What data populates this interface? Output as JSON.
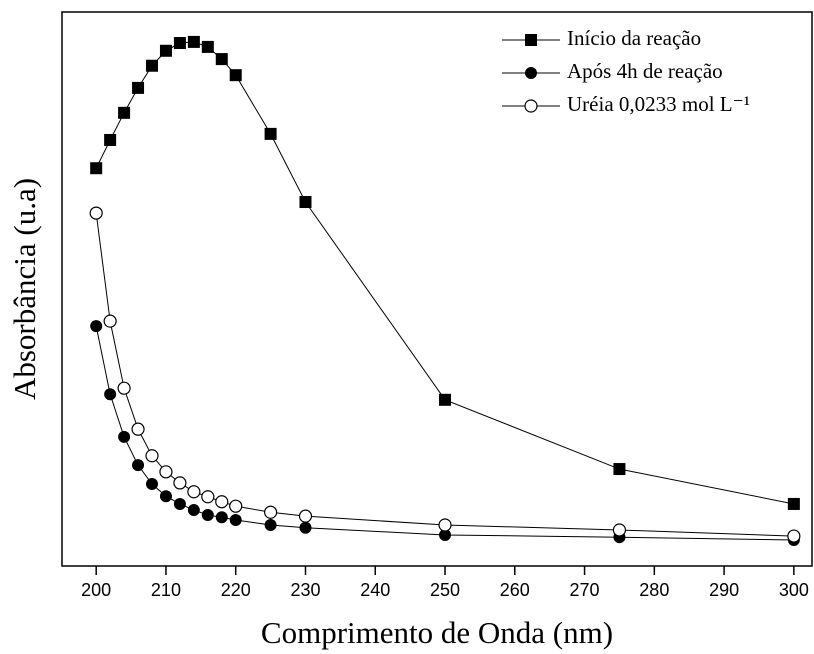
{
  "chart_data": {
    "type": "line",
    "xlabel": "Comprimento de Onda (nm)",
    "ylabel": "Absorbância (u.a)",
    "x": [
      200,
      202,
      204,
      206,
      208,
      210,
      212,
      214,
      216,
      218,
      220,
      225,
      230,
      250,
      275,
      300
    ],
    "series": [
      {
        "name": "Início da reação",
        "color": "#000000",
        "marker": "square",
        "values": [
          71.8,
          76.9,
          81.8,
          86.3,
          90.3,
          93.0,
          94.4,
          94.6,
          93.7,
          91.5,
          88.6,
          78.0,
          65.7,
          30.0,
          17.5,
          11.2
        ]
      },
      {
        "name": "Após 4h de reação",
        "color": "#000000",
        "marker": "circle",
        "values": [
          43.3,
          31.0,
          23.3,
          18.2,
          14.8,
          12.6,
          11.2,
          10.1,
          9.2,
          8.8,
          8.3,
          7.4,
          6.9,
          5.6,
          5.2,
          4.7
        ]
      },
      {
        "name": "Uréia 0,0233 mol L⁻¹",
        "color": "#000000",
        "marker": "open-circle",
        "values": [
          63.7,
          44.2,
          32.1,
          24.7,
          19.9,
          17.0,
          15.0,
          13.4,
          12.5,
          11.6,
          10.8,
          9.7,
          9.0,
          7.4,
          6.5,
          5.4
        ]
      }
    ],
    "xlim": [
      195.1,
      302.6
    ],
    "xticks": [
      200,
      210,
      220,
      230,
      240,
      250,
      260,
      270,
      280,
      290,
      300
    ],
    "ylim": [
      0,
      100
    ],
    "legend": "upper right"
  }
}
